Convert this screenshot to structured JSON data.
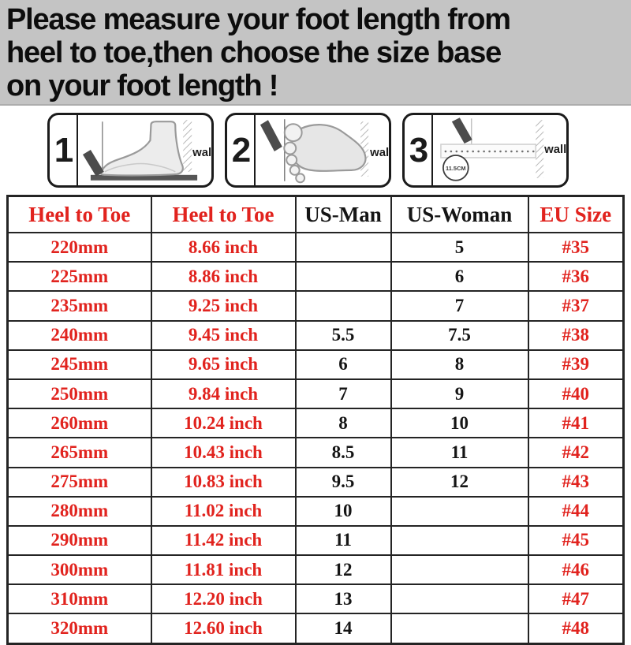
{
  "banner": {
    "lines": [
      "Please measure your foot length from",
      "heel to toe,then choose the size base",
      "on your foot length !"
    ]
  },
  "instructions": {
    "panels": [
      {
        "number": "1",
        "wall_label": "wall",
        "icon": "foot-side-measure-icon"
      },
      {
        "number": "2",
        "wall_label": "wall",
        "icon": "footprint-measure-icon"
      },
      {
        "number": "3",
        "wall_label": "wall",
        "ruler_label": "11.5CM",
        "icon": "ruler-measure-icon"
      }
    ]
  },
  "table": {
    "headers": [
      "Heel to Toe",
      "Heel to Toe",
      "US-Man",
      "US-Woman",
      "EU Size"
    ],
    "rows": [
      [
        "220mm",
        "8.66 inch",
        "",
        "5",
        "#35"
      ],
      [
        "225mm",
        "8.86 inch",
        "",
        "6",
        "#36"
      ],
      [
        "235mm",
        "9.25 inch",
        "",
        "7",
        "#37"
      ],
      [
        "240mm",
        "9.45 inch",
        "5.5",
        "7.5",
        "#38"
      ],
      [
        "245mm",
        "9.65 inch",
        "6",
        "8",
        "#39"
      ],
      [
        "250mm",
        "9.84 inch",
        "7",
        "9",
        "#40"
      ],
      [
        "260mm",
        "10.24 inch",
        "8",
        "10",
        "#41"
      ],
      [
        "265mm",
        "10.43 inch",
        "8.5",
        "11",
        "#42"
      ],
      [
        "275mm",
        "10.83 inch",
        "9.5",
        "12",
        "#43"
      ],
      [
        "280mm",
        "11.02 inch",
        "10",
        "",
        "#44"
      ],
      [
        "290mm",
        "11.42 inch",
        "11",
        "",
        "#45"
      ],
      [
        "300mm",
        "11.81 inch",
        "12",
        "",
        "#46"
      ],
      [
        "310mm",
        "12.20 inch",
        "13",
        "",
        "#47"
      ],
      [
        "320mm",
        "12.60 inch",
        "14",
        "",
        "#48"
      ]
    ]
  },
  "colors": {
    "accent_red": "#e1231e",
    "text_dark": "#151515",
    "banner_gray": "#c4c4c4"
  }
}
